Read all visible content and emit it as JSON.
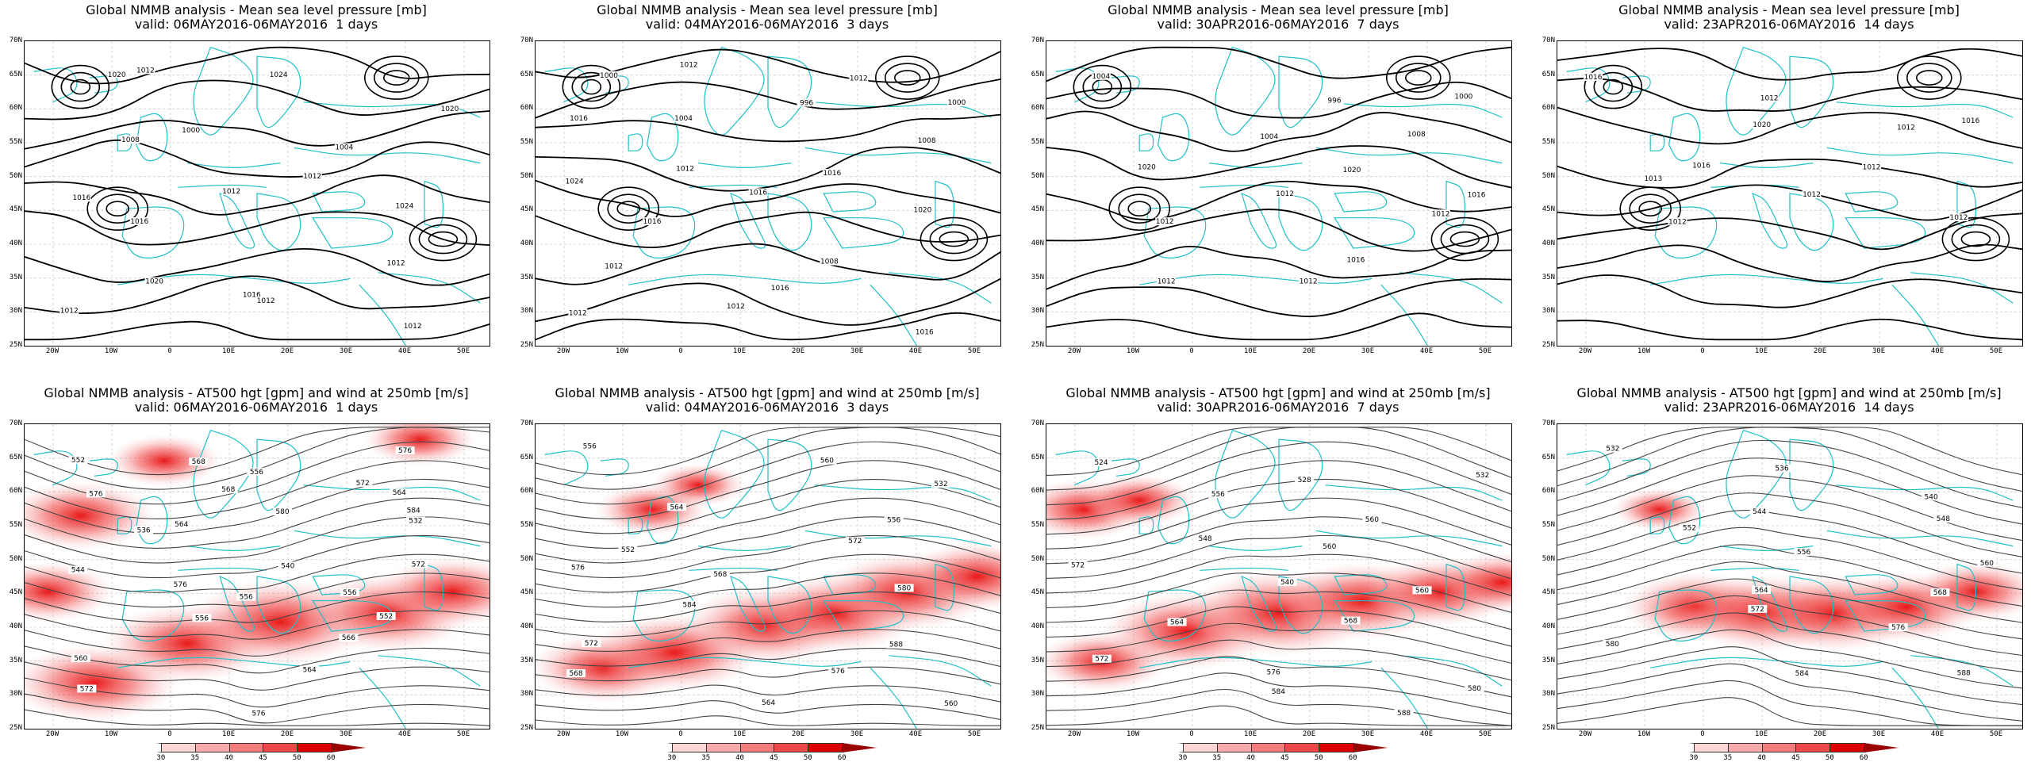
{
  "top_row": [
    {
      "title": "Global NMMB analysis - Mean sea level pressure [mb]",
      "valid": "valid: 06MAY2016-06MAY2016  1 days",
      "labels": [
        "1020",
        "1024",
        "1020",
        "1000",
        "1004",
        "1008",
        "1012",
        "1016",
        "1012",
        "1024",
        "1016",
        "1012",
        "1020",
        "1016",
        "1012",
        "1012",
        "1012",
        "1012"
      ]
    },
    {
      "title": "Global NMMB analysis - Mean sea level pressure [mb]",
      "valid": "valid: 04MAY2016-06MAY2016  3 days",
      "labels": [
        "1000",
        "996",
        "1000",
        "1004",
        "1008",
        "1012",
        "1016",
        "1024",
        "1016",
        "1020",
        "1016",
        "1008",
        "1012",
        "1016",
        "1012",
        "1012",
        "1016",
        "1012",
        "1012",
        "1016"
      ]
    },
    {
      "title": "Global NMMB analysis - Mean sea level pressure [mb]",
      "valid": "valid: 30APR2016-06MAY2016  7 days",
      "labels": [
        "1004",
        "996",
        "1000",
        "1004",
        "1008",
        "1020",
        "1020",
        "1016",
        "1012",
        "1012",
        "1012",
        "1016",
        "1012",
        "1012"
      ]
    },
    {
      "title": "Global NMMB analysis - Mean sea level pressure [mb]",
      "valid": "valid: 23APR2016-06MAY2016  14 days",
      "labels": [
        "1016",
        "1012",
        "1016",
        "1020",
        "1012",
        "1016",
        "1012",
        "1013",
        "1012",
        "1012",
        "1012"
      ]
    }
  ],
  "bottom_row": [
    {
      "title": "Global NMMB analysis - AT500 hgt [gpm] and wind at 250mb [m/s]",
      "valid": "valid: 06MAY2016-06MAY2016  1 days",
      "labels": [
        "552",
        "556",
        "564",
        "568",
        "532",
        "536",
        "540",
        "544",
        "556",
        "552",
        "556",
        "566",
        "560",
        "564",
        "572",
        "576",
        "576",
        "568",
        "572",
        "576",
        "580",
        "584",
        "564",
        "572",
        "576",
        "556"
      ]
    },
    {
      "title": "Global NMMB analysis - AT500 hgt [gpm] and wind at 250mb [m/s]",
      "valid": "valid: 04MAY2016-06MAY2016  3 days",
      "labels": [
        "556",
        "560",
        "532",
        "564",
        "556",
        "552",
        "572",
        "576",
        "568",
        "580",
        "584",
        "588",
        "572",
        "576",
        "568",
        "564",
        "560"
      ]
    },
    {
      "title": "Global NMMB analysis - AT500 hgt [gpm] and wind at 250mb [m/s]",
      "valid": "valid: 30APR2016-06MAY2016  7 days",
      "labels": [
        "524",
        "528",
        "532",
        "556",
        "560",
        "548",
        "560",
        "572",
        "540",
        "560",
        "564",
        "568",
        "572",
        "576",
        "580",
        "584",
        "588"
      ]
    },
    {
      "title": "Global NMMB analysis - AT500 hgt [gpm] and wind at 250mb [m/s]",
      "valid": "valid: 23APR2016-06MAY2016  14 days",
      "labels": [
        "532",
        "536",
        "540",
        "544",
        "548",
        "552",
        "556",
        "560",
        "564",
        "568",
        "572",
        "576",
        "580",
        "584",
        "588"
      ]
    }
  ],
  "axes": {
    "lat": [
      "70N",
      "65N",
      "60N",
      "55N",
      "50N",
      "45N",
      "40N",
      "35N",
      "30N",
      "25N"
    ],
    "lon": [
      "20W",
      "10W",
      "0",
      "10E",
      "20E",
      "30E",
      "40E",
      "50E"
    ]
  },
  "colorbar": {
    "ticks": [
      "30",
      "35",
      "40",
      "45",
      "50",
      "60"
    ],
    "colors": [
      "#ffffff",
      "#fcd5d5",
      "#f9aaaa",
      "#f47c7c",
      "#ee4848",
      "#dd0000",
      "#9a0000"
    ]
  },
  "colors": {
    "contour": "#000000",
    "coastline": "#20c0c8",
    "jet": "#e60000"
  }
}
